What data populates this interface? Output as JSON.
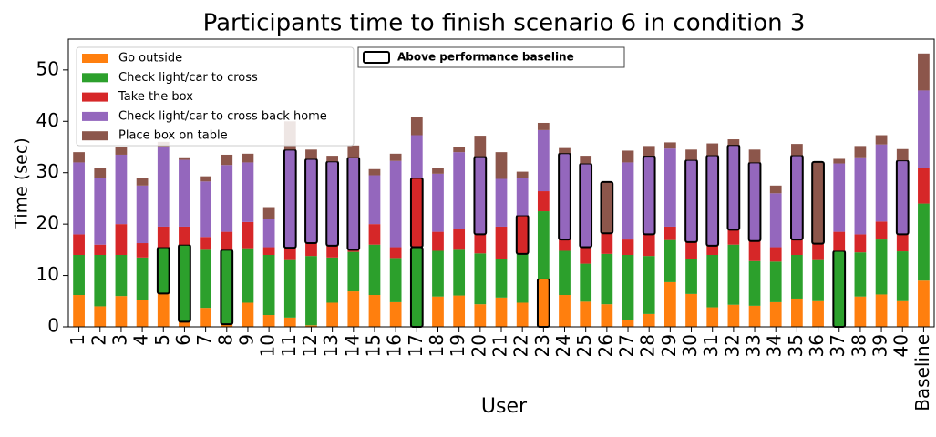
{
  "chart_data": {
    "type": "stacked_bar",
    "title": "Participants time to finish scenario 6 in condition 3",
    "x_label": "User",
    "y_label": "Time (sec)",
    "categories": [
      "1",
      "2",
      "3",
      "4",
      "5",
      "6",
      "7",
      "8",
      "9",
      "10",
      "11",
      "12",
      "13",
      "14",
      "15",
      "16",
      "17",
      "18",
      "19",
      "20",
      "21",
      "22",
      "23",
      "24",
      "25",
      "26",
      "27",
      "28",
      "29",
      "30",
      "31",
      "32",
      "33",
      "34",
      "35",
      "36",
      "37",
      "38",
      "39",
      "40",
      "Baseline"
    ],
    "ylim": [
      0,
      56
    ],
    "yticks": [
      0,
      10,
      20,
      30,
      40,
      50
    ],
    "legend": "upper left",
    "outline_label": "Above performance baseline",
    "series": [
      {
        "name": "Go outside",
        "color": "#ff7f0e",
        "values": [
          6.2,
          4,
          6,
          5.3,
          6.5,
          1,
          3.7,
          0.5,
          4.7,
          2.3,
          1.8,
          0.3,
          4.7,
          6.9,
          6.2,
          4.8,
          0,
          5.9,
          6.1,
          4.4,
          5.7,
          4.7,
          9.4,
          6.2,
          4.9,
          4.4,
          1.3,
          2.5,
          8.7,
          6.4,
          3.8,
          4.3,
          4.1,
          4.8,
          5.5,
          5,
          0,
          5.9,
          6.3,
          5,
          9
        ],
        "outlined": [
          false,
          false,
          false,
          false,
          false,
          false,
          false,
          false,
          false,
          false,
          false,
          false,
          false,
          false,
          false,
          false,
          false,
          false,
          false,
          false,
          false,
          false,
          true,
          false,
          false,
          false,
          false,
          false,
          false,
          false,
          false,
          false,
          false,
          false,
          false,
          false,
          false,
          false,
          false,
          false,
          false
        ]
      },
      {
        "name": "Check light/car to cross",
        "color": "#2ca02c",
        "values": [
          7.8,
          10,
          8,
          8.2,
          9,
          15,
          11.3,
          14.5,
          10.6,
          11.7,
          11.2,
          13.5,
          8.8,
          7.7,
          9.8,
          8.6,
          15.5,
          8.9,
          8.9,
          9.9,
          7.5,
          9.5,
          13.1,
          8.6,
          7.4,
          9.8,
          12.7,
          11.3,
          8.2,
          6.8,
          10.2,
          11.7,
          8.7,
          7.9,
          8.5,
          8,
          14.8,
          8.6,
          10.7,
          9.7,
          15
        ],
        "outlined": [
          false,
          false,
          false,
          false,
          true,
          true,
          false,
          true,
          false,
          false,
          false,
          false,
          false,
          false,
          false,
          false,
          true,
          false,
          false,
          false,
          false,
          false,
          false,
          false,
          false,
          false,
          false,
          false,
          false,
          false,
          false,
          false,
          false,
          false,
          false,
          false,
          true,
          false,
          false,
          false,
          false
        ]
      },
      {
        "name": "Take the box",
        "color": "#d62728",
        "values": [
          4,
          2,
          6,
          2.8,
          4,
          3.5,
          2.5,
          3.5,
          5.1,
          1.5,
          2.4,
          2.5,
          2.3,
          0.4,
          4,
          2.1,
          13.5,
          3.7,
          4,
          3.7,
          6.3,
          7.5,
          3.9,
          2.2,
          3.2,
          4,
          3,
          4.2,
          2.6,
          3.3,
          1.8,
          2.9,
          3.9,
          2.8,
          3,
          3.2,
          3.7,
          3.5,
          3.5,
          3.3,
          7
        ],
        "outlined": [
          false,
          false,
          false,
          false,
          false,
          false,
          false,
          false,
          false,
          false,
          false,
          false,
          false,
          false,
          false,
          false,
          true,
          false,
          false,
          false,
          false,
          true,
          false,
          false,
          false,
          false,
          false,
          false,
          false,
          false,
          false,
          false,
          false,
          false,
          false,
          false,
          false,
          false,
          false,
          false,
          false
        ]
      },
      {
        "name": "Check light/car to cross back home",
        "color": "#9467bd",
        "values": [
          14,
          13,
          13.5,
          11.2,
          15.5,
          13,
          10.8,
          13,
          11.6,
          5.5,
          19.1,
          16.4,
          16.4,
          18,
          9.5,
          16.8,
          8.3,
          11.3,
          15,
          15.2,
          9.3,
          7.3,
          11.9,
          16.8,
          16.3,
          0,
          15,
          15.3,
          15.2,
          16,
          17.6,
          16.5,
          15.3,
          10.5,
          16.4,
          0,
          13.3,
          15,
          15,
          14.4,
          15
        ],
        "outlined": [
          false,
          false,
          false,
          false,
          false,
          false,
          false,
          false,
          false,
          false,
          true,
          true,
          true,
          true,
          false,
          false,
          false,
          false,
          false,
          true,
          false,
          false,
          false,
          true,
          true,
          false,
          false,
          true,
          false,
          true,
          true,
          true,
          true,
          false,
          true,
          false,
          false,
          false,
          false,
          true,
          false
        ]
      },
      {
        "name": "Place box on table",
        "color": "#8c564b",
        "values": [
          2,
          2,
          1.5,
          1.5,
          1,
          0.5,
          1,
          2,
          1.7,
          2.3,
          5.5,
          1.8,
          1.1,
          2.3,
          1.2,
          1.4,
          3.5,
          1.2,
          1,
          4,
          5.2,
          1.2,
          1.4,
          1,
          1.5,
          10,
          2.3,
          1.9,
          1.2,
          2,
          2.3,
          1.1,
          2.5,
          1.5,
          2.2,
          15.9,
          0.9,
          2.2,
          1.8,
          2.2,
          7.2
        ],
        "outlined": [
          false,
          false,
          false,
          false,
          false,
          false,
          false,
          false,
          false,
          false,
          false,
          false,
          false,
          false,
          false,
          false,
          false,
          false,
          false,
          false,
          false,
          false,
          false,
          false,
          false,
          true,
          false,
          false,
          false,
          false,
          false,
          false,
          false,
          false,
          false,
          true,
          false,
          false,
          false,
          false,
          false
        ]
      }
    ]
  }
}
